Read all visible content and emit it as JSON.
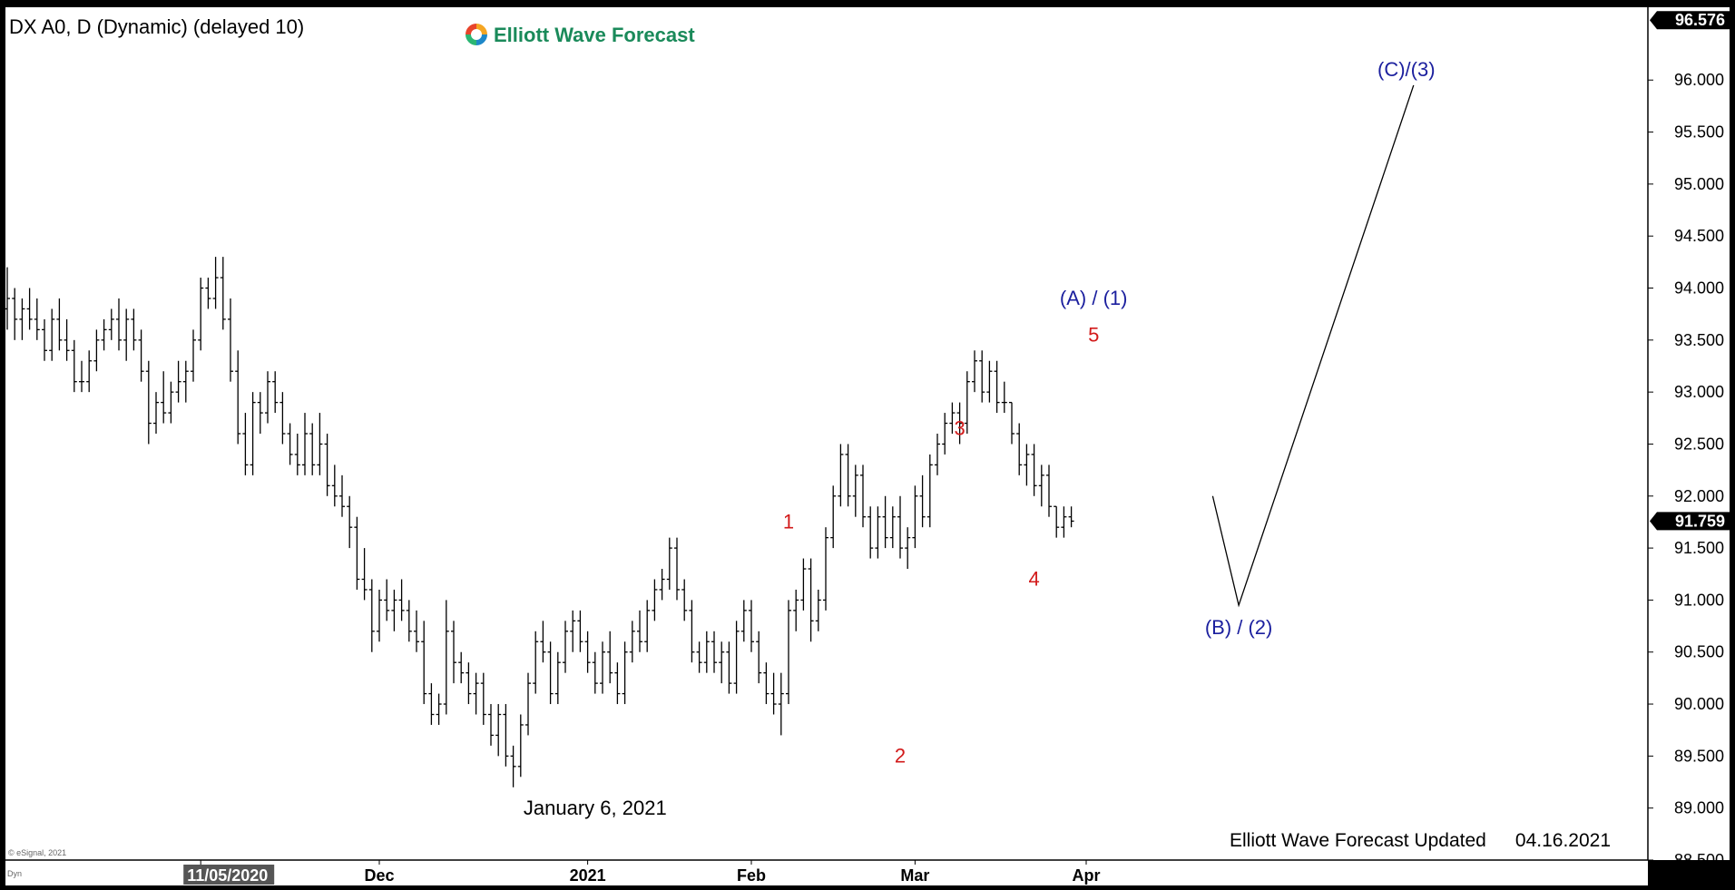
{
  "title": "DX A0, D (Dynamic) (delayed 10)",
  "logo": {
    "text": "Elliott Wave Forecast",
    "colors": [
      "#e8442b",
      "#f5a623",
      "#1e88c9",
      "#2bb673"
    ]
  },
  "footer": {
    "label": "Elliott Wave Forecast Updated",
    "date": "04.16.2021"
  },
  "copyright": "© eSignal, 2021",
  "corner_tag": "Dyn",
  "colors": {
    "wave_count": "#d21a1a",
    "wave_degree": "#1b1f9e",
    "bars": "#000000",
    "background": "#ffffff",
    "frame": "#000000"
  },
  "chart_data": {
    "type": "ohlc-bar",
    "ylim": [
      88.5,
      96.7
    ],
    "y_ticks": [
      "88.500",
      "89.000",
      "89.500",
      "90.000",
      "90.500",
      "91.000",
      "91.500",
      "92.000",
      "92.500",
      "93.000",
      "93.500",
      "94.000",
      "94.500",
      "95.000",
      "95.500",
      "96.000"
    ],
    "x_ticks": [
      "11/05/2020",
      "Dec",
      "2021",
      "Feb",
      "Mar",
      "Apr"
    ],
    "x_tick_index": [
      26,
      50,
      78,
      100,
      122,
      145
    ],
    "highlighted_x_tick": "11/05/2020",
    "price_tags": [
      {
        "label": "96.576",
        "value": 96.576
      },
      {
        "label": "91.759",
        "value": 91.759
      }
    ],
    "bars": [
      [
        93.8,
        94.2,
        93.6,
        93.9
      ],
      [
        93.9,
        94.0,
        93.5,
        93.7
      ],
      [
        93.7,
        93.9,
        93.5,
        93.8
      ],
      [
        93.8,
        94.0,
        93.6,
        93.7
      ],
      [
        93.7,
        93.9,
        93.5,
        93.6
      ],
      [
        93.6,
        93.7,
        93.3,
        93.4
      ],
      [
        93.4,
        93.8,
        93.3,
        93.7
      ],
      [
        93.7,
        93.9,
        93.4,
        93.5
      ],
      [
        93.5,
        93.7,
        93.3,
        93.4
      ],
      [
        93.4,
        93.5,
        93.0,
        93.1
      ],
      [
        93.1,
        93.3,
        93.0,
        93.1
      ],
      [
        93.1,
        93.4,
        93.0,
        93.3
      ],
      [
        93.3,
        93.6,
        93.2,
        93.5
      ],
      [
        93.5,
        93.7,
        93.4,
        93.6
      ],
      [
        93.6,
        93.8,
        93.5,
        93.7
      ],
      [
        93.7,
        93.9,
        93.4,
        93.5
      ],
      [
        93.5,
        93.8,
        93.3,
        93.7
      ],
      [
        93.7,
        93.8,
        93.4,
        93.5
      ],
      [
        93.5,
        93.6,
        93.1,
        93.2
      ],
      [
        93.2,
        93.3,
        92.5,
        92.7
      ],
      [
        92.7,
        93.0,
        92.6,
        92.9
      ],
      [
        92.9,
        93.2,
        92.7,
        92.8
      ],
      [
        92.8,
        93.1,
        92.7,
        93.0
      ],
      [
        93.0,
        93.3,
        92.9,
        93.1
      ],
      [
        93.1,
        93.3,
        92.9,
        93.2
      ],
      [
        93.2,
        93.6,
        93.1,
        93.5
      ],
      [
        93.5,
        94.1,
        93.4,
        94.0
      ],
      [
        94.0,
        94.1,
        93.8,
        93.9
      ],
      [
        93.9,
        94.3,
        93.8,
        94.1
      ],
      [
        94.1,
        94.3,
        93.6,
        93.7
      ],
      [
        93.7,
        93.9,
        93.1,
        93.2
      ],
      [
        93.2,
        93.4,
        92.5,
        92.6
      ],
      [
        92.6,
        92.8,
        92.2,
        92.3
      ],
      [
        92.3,
        93.0,
        92.2,
        92.9
      ],
      [
        92.9,
        93.0,
        92.6,
        92.8
      ],
      [
        92.8,
        93.2,
        92.7,
        93.1
      ],
      [
        93.1,
        93.2,
        92.8,
        92.9
      ],
      [
        92.9,
        93.0,
        92.5,
        92.6
      ],
      [
        92.6,
        92.7,
        92.3,
        92.4
      ],
      [
        92.4,
        92.6,
        92.2,
        92.3
      ],
      [
        92.3,
        92.8,
        92.2,
        92.6
      ],
      [
        92.6,
        92.7,
        92.2,
        92.3
      ],
      [
        92.3,
        92.8,
        92.2,
        92.5
      ],
      [
        92.5,
        92.6,
        92.0,
        92.1
      ],
      [
        92.1,
        92.3,
        91.9,
        92.0
      ],
      [
        92.0,
        92.2,
        91.8,
        91.9
      ],
      [
        91.9,
        92.0,
        91.5,
        91.7
      ],
      [
        91.7,
        91.8,
        91.1,
        91.2
      ],
      [
        91.2,
        91.5,
        91.0,
        91.1
      ],
      [
        91.1,
        91.2,
        90.5,
        90.7
      ],
      [
        90.7,
        91.1,
        90.6,
        91.0
      ],
      [
        91.0,
        91.2,
        90.8,
        90.9
      ],
      [
        90.9,
        91.1,
        90.7,
        91.0
      ],
      [
        91.0,
        91.2,
        90.8,
        90.9
      ],
      [
        90.9,
        91.0,
        90.6,
        90.7
      ],
      [
        90.7,
        90.9,
        90.5,
        90.6
      ],
      [
        90.6,
        90.8,
        90.0,
        90.1
      ],
      [
        90.1,
        90.2,
        89.8,
        89.9
      ],
      [
        89.9,
        90.1,
        89.8,
        90.0
      ],
      [
        90.0,
        91.0,
        89.9,
        90.7
      ],
      [
        90.7,
        90.8,
        90.2,
        90.4
      ],
      [
        90.4,
        90.5,
        90.2,
        90.3
      ],
      [
        90.3,
        90.4,
        90.0,
        90.1
      ],
      [
        90.1,
        90.3,
        89.9,
        90.2
      ],
      [
        90.2,
        90.3,
        89.8,
        89.9
      ],
      [
        89.9,
        90.0,
        89.6,
        89.7
      ],
      [
        89.7,
        90.0,
        89.5,
        89.9
      ],
      [
        89.9,
        90.0,
        89.4,
        89.5
      ],
      [
        89.5,
        89.6,
        89.2,
        89.4
      ],
      [
        89.4,
        89.9,
        89.3,
        89.8
      ],
      [
        89.8,
        90.3,
        89.7,
        90.2
      ],
      [
        90.2,
        90.7,
        90.1,
        90.6
      ],
      [
        90.6,
        90.8,
        90.4,
        90.5
      ],
      [
        90.5,
        90.6,
        90.0,
        90.1
      ],
      [
        90.1,
        90.5,
        90.0,
        90.4
      ],
      [
        90.4,
        90.8,
        90.3,
        90.7
      ],
      [
        90.7,
        90.9,
        90.5,
        90.8
      ],
      [
        90.8,
        90.9,
        90.5,
        90.6
      ],
      [
        90.6,
        90.7,
        90.3,
        90.4
      ],
      [
        90.4,
        90.5,
        90.1,
        90.2
      ],
      [
        90.2,
        90.6,
        90.1,
        90.5
      ],
      [
        90.5,
        90.7,
        90.2,
        90.3
      ],
      [
        90.3,
        90.4,
        90.0,
        90.1
      ],
      [
        90.1,
        90.6,
        90.0,
        90.5
      ],
      [
        90.5,
        90.8,
        90.4,
        90.7
      ],
      [
        90.7,
        90.9,
        90.5,
        90.6
      ],
      [
        90.6,
        91.0,
        90.5,
        90.9
      ],
      [
        90.9,
        91.2,
        90.8,
        91.1
      ],
      [
        91.1,
        91.3,
        91.0,
        91.2
      ],
      [
        91.2,
        91.6,
        91.1,
        91.5
      ],
      [
        91.5,
        91.6,
        91.0,
        91.1
      ],
      [
        91.1,
        91.2,
        90.8,
        90.9
      ],
      [
        90.9,
        91.0,
        90.4,
        90.5
      ],
      [
        90.5,
        90.6,
        90.3,
        90.4
      ],
      [
        90.4,
        90.7,
        90.3,
        90.6
      ],
      [
        90.6,
        90.7,
        90.3,
        90.4
      ],
      [
        90.4,
        90.6,
        90.2,
        90.5
      ],
      [
        90.5,
        90.6,
        90.1,
        90.2
      ],
      [
        90.2,
        90.8,
        90.1,
        90.7
      ],
      [
        90.7,
        91.0,
        90.6,
        90.9
      ],
      [
        90.9,
        91.0,
        90.5,
        90.6
      ],
      [
        90.6,
        90.7,
        90.2,
        90.3
      ],
      [
        90.3,
        90.4,
        90.0,
        90.1
      ],
      [
        90.1,
        90.3,
        89.9,
        90.0
      ],
      [
        90.0,
        90.3,
        89.7,
        90.1
      ],
      [
        90.1,
        91.0,
        90.0,
        90.9
      ],
      [
        90.9,
        91.1,
        90.7,
        91.0
      ],
      [
        91.0,
        91.4,
        90.9,
        91.3
      ],
      [
        91.3,
        91.4,
        90.6,
        90.8
      ],
      [
        90.8,
        91.1,
        90.7,
        91.0
      ],
      [
        91.0,
        91.7,
        90.9,
        91.6
      ],
      [
        91.6,
        92.1,
        91.5,
        92.0
      ],
      [
        92.0,
        92.5,
        91.9,
        92.4
      ],
      [
        92.4,
        92.5,
        91.9,
        92.0
      ],
      [
        92.0,
        92.3,
        91.8,
        92.2
      ],
      [
        92.2,
        92.3,
        91.7,
        91.8
      ],
      [
        91.8,
        91.9,
        91.4,
        91.5
      ],
      [
        91.5,
        91.9,
        91.4,
        91.8
      ],
      [
        91.8,
        92.0,
        91.5,
        91.6
      ],
      [
        91.6,
        91.9,
        91.5,
        91.8
      ],
      [
        91.8,
        92.0,
        91.4,
        91.5
      ],
      [
        91.5,
        91.7,
        91.3,
        91.6
      ],
      [
        91.6,
        92.1,
        91.5,
        92.0
      ],
      [
        92.0,
        92.2,
        91.7,
        91.8
      ],
      [
        91.8,
        92.4,
        91.7,
        92.3
      ],
      [
        92.3,
        92.6,
        92.2,
        92.5
      ],
      [
        92.5,
        92.8,
        92.4,
        92.7
      ],
      [
        92.7,
        92.9,
        92.6,
        92.8
      ],
      [
        92.8,
        92.9,
        92.5,
        92.7
      ],
      [
        92.7,
        93.2,
        92.6,
        93.1
      ],
      [
        93.1,
        93.4,
        93.0,
        93.3
      ],
      [
        93.3,
        93.4,
        92.9,
        93.0
      ],
      [
        93.0,
        93.3,
        92.9,
        93.2
      ],
      [
        93.2,
        93.3,
        92.8,
        92.9
      ],
      [
        92.9,
        93.1,
        92.8,
        92.9
      ],
      [
        92.9,
        92.9,
        92.5,
        92.6
      ],
      [
        92.6,
        92.7,
        92.2,
        92.3
      ],
      [
        92.3,
        92.5,
        92.1,
        92.4
      ],
      [
        92.4,
        92.5,
        92.0,
        92.1
      ],
      [
        92.1,
        92.3,
        91.9,
        92.2
      ],
      [
        92.2,
        92.3,
        91.8,
        91.9
      ],
      [
        91.9,
        91.9,
        91.6,
        91.7
      ],
      [
        91.7,
        91.9,
        91.6,
        91.8
      ],
      [
        91.8,
        91.9,
        91.7,
        91.759
      ]
    ],
    "labels": [
      {
        "text": "1",
        "role": "wave",
        "bar": 105,
        "price": 91.6,
        "pos": "above"
      },
      {
        "text": "2",
        "role": "wave",
        "bar": 120,
        "price": 89.7,
        "pos": "below"
      },
      {
        "text": "3",
        "role": "wave",
        "bar": 128,
        "price": 92.5,
        "pos": "above"
      },
      {
        "text": "4",
        "role": "wave",
        "bar": 138,
        "price": 91.4,
        "pos": "below"
      },
      {
        "text": "5",
        "role": "wave",
        "bar": 146,
        "price": 93.4,
        "pos": "above"
      },
      {
        "text": "(A) / (1)",
        "role": "degree",
        "bar": 146,
        "price": 93.75,
        "pos": "above"
      },
      {
        "text": "January 6, 2021",
        "role": "note",
        "bar": 79,
        "price": 89.2,
        "pos": "below"
      }
    ],
    "projection": {
      "points": [
        [
          162,
          92.0
        ],
        [
          165.5,
          90.95
        ],
        [
          189,
          95.95
        ]
      ],
      "labels": [
        {
          "text": "(B) / (2)",
          "point": 1,
          "pos": "below"
        },
        {
          "text": "(C)/(3)",
          "point": 2,
          "pos": "above"
        }
      ]
    }
  }
}
